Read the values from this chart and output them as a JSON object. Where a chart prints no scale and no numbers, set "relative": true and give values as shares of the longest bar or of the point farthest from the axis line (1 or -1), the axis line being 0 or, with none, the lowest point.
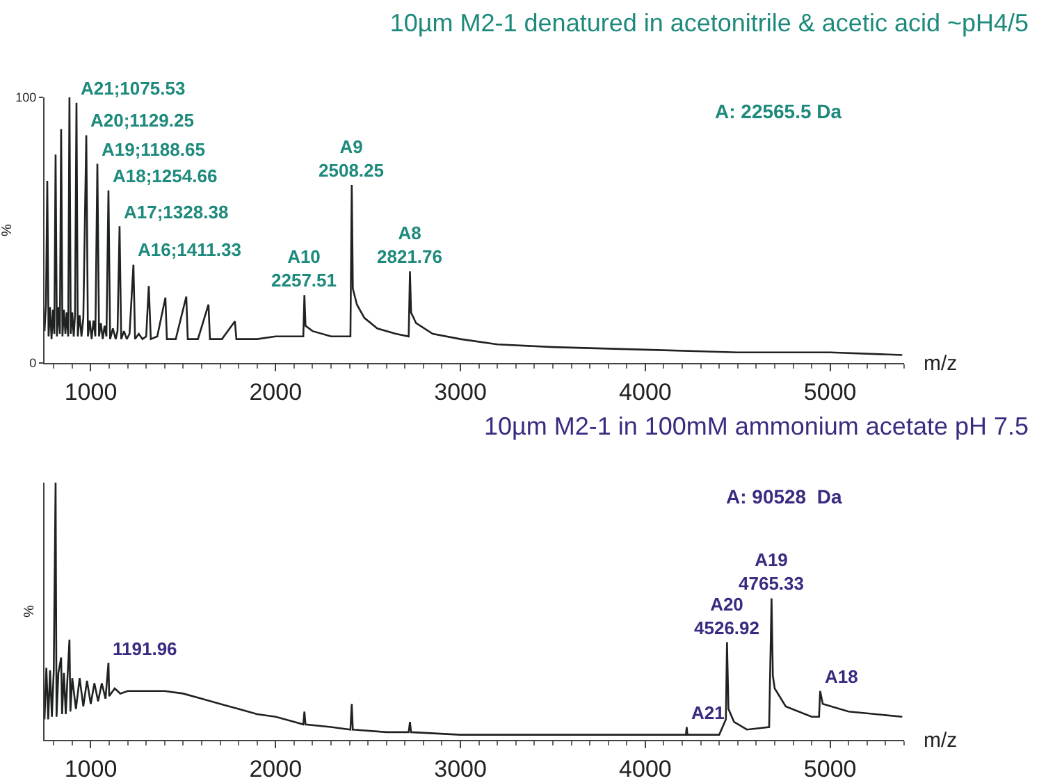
{
  "chart_data": [
    {
      "type": "line",
      "title": "10µm M2-1 denatured in acetonitrile & acetic acid ~pH4/5",
      "xlabel": "m/z",
      "ylabel": "%",
      "xlim": [
        750,
        5400
      ],
      "xticks": [
        1000,
        2000,
        3000,
        4000,
        5000
      ],
      "ylim": [
        0,
        100
      ],
      "yticks": [
        0,
        100
      ],
      "grid": false,
      "marker": "none",
      "line_style": "solid",
      "series": [
        {
          "color": "#1e2220",
          "x": [
            750,
            758,
            765,
            772,
            780,
            788,
            796,
            803,
            810,
            817,
            825,
            833,
            840,
            847,
            855,
            863,
            870,
            878,
            885,
            892,
            900,
            908,
            915,
            923,
            930,
            940,
            950,
            960,
            976,
            985,
            995,
            1005,
            1015,
            1025,
            1036,
            1045,
            1055,
            1065,
            1075,
            1085,
            1096,
            1105,
            1120,
            1135,
            1145,
            1156,
            1165,
            1180,
            1195,
            1210,
            1231,
            1240,
            1260,
            1280,
            1300,
            1314,
            1325,
            1360,
            1404,
            1412,
            1460,
            1517,
            1525,
            1580,
            1637,
            1645,
            1710,
            1780,
            1788,
            1900,
            2000,
            2100,
            2150,
            2156,
            2162,
            2200,
            2300,
            2405,
            2412,
            2418,
            2440,
            2480,
            2550,
            2650,
            2720,
            2727,
            2733,
            2760,
            2850,
            3000,
            3200,
            3500,
            4000,
            4500,
            5000,
            5390
          ],
          "values": [
            12,
            22,
            68.6,
            10,
            21,
            9,
            20,
            11,
            78.5,
            10,
            21,
            11,
            88,
            10,
            20,
            11,
            19,
            10,
            100,
            11,
            19,
            10,
            18,
            98,
            10,
            18,
            10,
            17,
            85.7,
            10,
            16,
            9,
            16,
            10,
            75,
            10,
            15,
            9,
            14,
            10,
            65,
            9,
            13,
            9,
            12,
            51.5,
            9,
            12,
            9,
            11,
            37,
            9,
            11,
            9,
            10,
            29,
            9,
            10,
            24.6,
            9,
            9,
            25,
            9,
            9,
            22,
            9,
            9,
            15.7,
            9,
            9,
            10,
            10,
            10,
            25.6,
            14,
            12,
            10,
            10,
            67,
            28,
            22,
            17,
            13,
            11,
            10,
            34.5,
            19,
            15,
            11,
            9,
            7,
            6,
            5,
            4,
            4,
            3
          ]
        }
      ],
      "annotations": [
        {
          "text": "A21;1075.53",
          "x": 923,
          "y": 98
        },
        {
          "text": "A20;1129.25",
          "x": 976,
          "y": 85.7
        },
        {
          "text": "A19;1188.65",
          "x": 1036,
          "y": 75
        },
        {
          "text": "A18;1254.66",
          "x": 1096,
          "y": 65
        },
        {
          "text": "A17;1328.38",
          "x": 1156,
          "y": 51.5
        },
        {
          "text": "A16;1411.33",
          "x": 1231,
          "y": 37
        },
        {
          "text": "A10\n2257.51",
          "x": 2156,
          "y": 25.6
        },
        {
          "text": "A9\n2508.25",
          "x": 2412,
          "y": 67
        },
        {
          "text": "A8\n2821.76",
          "x": 2727,
          "y": 34.5
        },
        "A: 22565.5 Da"
      ]
    },
    {
      "type": "line",
      "title": "10µm M2-1 in 100mM ammonium acetate pH 7.5",
      "xlabel": "m/z",
      "ylabel": "%",
      "xlim": [
        750,
        5400
      ],
      "xticks": [
        1000,
        2000,
        3000,
        4000,
        5000
      ],
      "relative": true,
      "grid": false,
      "marker": "none",
      "line_style": "solid",
      "series": [
        {
          "color": "#1e2220",
          "x": [
            750,
            760,
            770,
            780,
            790,
            800,
            810,
            815,
            825,
            840,
            845,
            855,
            865,
            875,
            885,
            890,
            900,
            920,
            940,
            960,
            980,
            1000,
            1020,
            1040,
            1060,
            1080,
            1096,
            1100,
            1130,
            1160,
            1200,
            1250,
            1300,
            1400,
            1500,
            1600,
            1700,
            1800,
            1900,
            2000,
            2100,
            2150,
            2156,
            2162,
            2300,
            2405,
            2412,
            2418,
            2600,
            2720,
            2727,
            2733,
            3000,
            3500,
            4000,
            4220,
            4224,
            4228,
            4400,
            4436,
            4442,
            4450,
            4480,
            4550,
            4670,
            4683,
            4690,
            4700,
            4760,
            4900,
            4940,
            4946,
            4960,
            5100,
            5390
          ],
          "values": [
            0.08,
            0.28,
            0.08,
            0.27,
            0.09,
            0.27,
            1,
            0.09,
            0.26,
            0.32,
            0.1,
            0.26,
            0.1,
            0.25,
            0.39,
            0.11,
            0.24,
            0.12,
            0.24,
            0.13,
            0.23,
            0.14,
            0.22,
            0.15,
            0.22,
            0.16,
            0.3,
            0.17,
            0.2,
            0.18,
            0.19,
            0.19,
            0.19,
            0.19,
            0.18,
            0.16,
            0.14,
            0.12,
            0.1,
            0.09,
            0.07,
            0.06,
            0.11,
            0.06,
            0.05,
            0.04,
            0.14,
            0.04,
            0.03,
            0.03,
            0.07,
            0.03,
            0.02,
            0.02,
            0.02,
            0.02,
            0.05,
            0.02,
            0.02,
            0.08,
            0.38,
            0.12,
            0.07,
            0.04,
            0.05,
            0.55,
            0.25,
            0.2,
            0.13,
            0.09,
            0.09,
            0.19,
            0.14,
            0.11,
            0.09
          ]
        }
      ],
      "annotations": [
        {
          "text": "1191.96",
          "x": 1096,
          "y": 0.3
        },
        {
          "text": "A21",
          "x": 4224,
          "y": 0.05
        },
        {
          "text": "A20\n4526.92",
          "x": 4442,
          "y": 0.38
        },
        {
          "text": "A19\n4765.33",
          "x": 4683,
          "y": 0.55
        },
        {
          "text": "A18",
          "x": 4946,
          "y": 0.19
        },
        "A: 90528  Da"
      ]
    }
  ]
}
